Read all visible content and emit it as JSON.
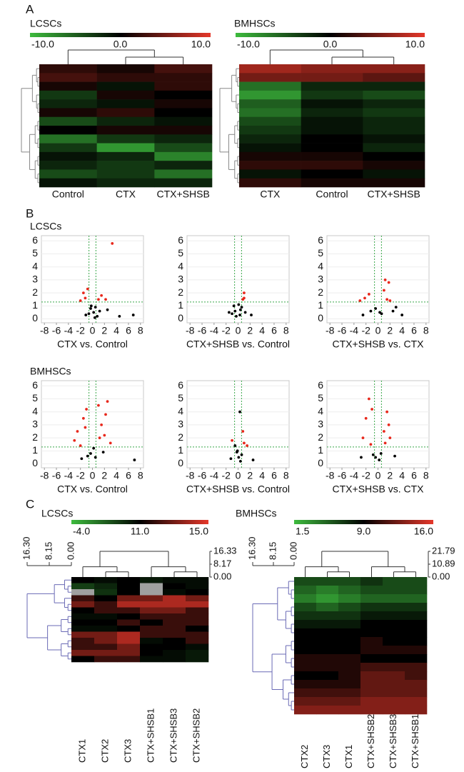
{
  "panel_labels": [
    "A",
    "B",
    "C"
  ],
  "heatmap_colors": [
    "#3dbb3d",
    "#000000",
    "#e5372a"
  ],
  "heatmaps_a": [
    {
      "title": "LCSCs",
      "scale_ticks": [
        {
          "value": -10,
          "label": "-10.0"
        },
        {
          "value": 0,
          "label": "0.0"
        },
        {
          "value": 10,
          "label": "10.0"
        }
      ],
      "columns": [
        "Control",
        "CTX",
        "CTX+SHSB"
      ],
      "rows": [
        [
          2,
          1,
          3
        ],
        [
          3,
          2,
          2
        ],
        [
          1,
          -1,
          2
        ],
        [
          -3,
          1,
          0
        ],
        [
          -2,
          -1,
          1
        ],
        [
          1,
          2,
          0
        ],
        [
          -4,
          -2,
          -1
        ],
        [
          0,
          1,
          1
        ],
        [
          -6,
          -3,
          -2
        ],
        [
          -3,
          -8,
          -4
        ],
        [
          -1,
          -2,
          -7
        ],
        [
          -2,
          -3,
          -2
        ],
        [
          -4,
          -3,
          -6
        ],
        [
          -1,
          -2,
          -2
        ]
      ]
    },
    {
      "title": "BMHSCs",
      "scale_ticks": [
        {
          "value": -10,
          "label": "-10.0"
        },
        {
          "value": 0,
          "label": "0.0"
        },
        {
          "value": 10,
          "label": "10.0"
        }
      ],
      "columns": [
        "CTX",
        "Control",
        "CTX+SHSB"
      ],
      "rows": [
        [
          7,
          6,
          6
        ],
        [
          5,
          5,
          4
        ],
        [
          -6,
          -2,
          -2
        ],
        [
          -8,
          -3,
          -4
        ],
        [
          -5,
          -1,
          -2
        ],
        [
          -6,
          -2,
          -3
        ],
        [
          -4,
          -1,
          -2
        ],
        [
          -3,
          -1,
          -2
        ],
        [
          -2,
          0,
          -1
        ],
        [
          -1,
          0,
          -2
        ],
        [
          1,
          1,
          0
        ],
        [
          2,
          2,
          1
        ],
        [
          -1,
          0,
          -1
        ],
        [
          2,
          1,
          1
        ]
      ]
    }
  ],
  "volcano": {
    "type": "scatter",
    "xlim": [
      -8.5,
      8.5
    ],
    "ylim": [
      -0.3,
      6.4
    ],
    "xticks": [
      -8,
      -6,
      -4,
      -2,
      0,
      2,
      4,
      6,
      8
    ],
    "yticks": [
      0,
      1,
      2,
      3,
      4,
      5,
      6
    ],
    "grid": true,
    "thresholds": {
      "x": [
        -0.58,
        0.58
      ],
      "y": 1.3
    },
    "threshold_color": "#3aa84a",
    "point_colors": {
      "significant": "#e8281c",
      "other": "#000000"
    },
    "groups": [
      {
        "title": "LCSCs",
        "plots": [
          {
            "xlabel": "CTX vs. Control",
            "x": [
              -1.5,
              -1.2,
              -0.8,
              1.0,
              1.5,
              2.2,
              -2.0,
              3.3,
              -0.3,
              0.2,
              0.5,
              -0.6,
              1.2,
              -1.1,
              0.8,
              2.5,
              4.5,
              -0.2,
              0.4,
              6.8
            ],
            "y": [
              2.0,
              1.6,
              2.3,
              1.5,
              1.8,
              1.5,
              1.4,
              5.8,
              0.8,
              0.5,
              0.9,
              0.4,
              0.6,
              0.3,
              0.2,
              0.7,
              0.2,
              1.0,
              0.1,
              0.3
            ]
          },
          {
            "xlabel": "CTX+SHSB vs. Control",
            "x": [
              -0.5,
              0.3,
              0.6,
              -1.0,
              1.0,
              -0.3,
              0.1,
              0.8,
              1.2,
              2.2,
              -1.5,
              0.4,
              -0.7,
              1.0
            ],
            "y": [
              0.6,
              0.3,
              0.9,
              0.4,
              2.0,
              0.2,
              1.1,
              1.5,
              0.5,
              0.3,
              0.5,
              0.7,
              1.0,
              1.6
            ]
          },
          {
            "xlabel": "CTX+SHSB vs. CTX",
            "x": [
              -3.0,
              -2.2,
              -1.5,
              1.0,
              1.5,
              2.0,
              1.2,
              -0.4,
              0.3,
              2.5,
              -2.5,
              3.0,
              0.6,
              -1.2,
              1.8,
              4.0
            ],
            "y": [
              1.4,
              1.6,
              1.9,
              2.2,
              1.5,
              1.4,
              3.0,
              0.8,
              0.5,
              0.6,
              0.3,
              0.9,
              0.4,
              0.6,
              2.8,
              0.3
            ]
          }
        ]
      },
      {
        "title": "BMHSCs",
        "plots": [
          {
            "xlabel": "CTX vs. Control",
            "x": [
              -3.0,
              -2.5,
              -1.5,
              -1.0,
              1.0,
              1.5,
              2.0,
              2.5,
              3.0,
              -2.0,
              1.2,
              -0.3,
              0.2,
              0.5,
              -0.8,
              1.8,
              -1.8,
              7.0,
              2.2,
              -1.2
            ],
            "y": [
              1.8,
              2.5,
              3.5,
              4.2,
              4.5,
              3.0,
              2.2,
              4.8,
              1.6,
              1.4,
              2.0,
              0.8,
              1.2,
              0.5,
              0.6,
              0.9,
              0.4,
              0.3,
              3.8,
              2.8
            ]
          },
          {
            "xlabel": "CTX+SHSB vs. Control",
            "x": [
              -1.0,
              -0.5,
              0.3,
              0.8,
              1.0,
              1.5,
              -0.2,
              0.1,
              0.6,
              -1.2,
              2.5,
              -0.1,
              0.4
            ],
            "y": [
              1.8,
              1.4,
              4.0,
              2.5,
              1.6,
              1.4,
              0.9,
              0.5,
              0.7,
              0.4,
              0.3,
              1.0,
              0.2
            ]
          },
          {
            "xlabel": "CTX+SHSB vs. CTX",
            "x": [
              -2.5,
              -2.0,
              -1.5,
              -1.0,
              1.0,
              1.5,
              2.0,
              1.2,
              -1.2,
              0.5,
              -0.4,
              0.2,
              2.8,
              -2.8,
              1.8,
              -0.8
            ],
            "y": [
              2.0,
              3.5,
              5.0,
              4.2,
              2.5,
              4.0,
              2.0,
              1.6,
              1.5,
              0.8,
              0.5,
              0.3,
              0.6,
              0.5,
              3.0,
              0.7
            ]
          }
        ]
      }
    ]
  },
  "heatmaps_c": [
    {
      "title": "LCSCs",
      "scale_ticks": [
        {
          "value": -4,
          "label": "-4.0"
        },
        {
          "value": 11,
          "label": "11.0"
        },
        {
          "value": 15,
          "label": "15.0"
        }
      ],
      "row_tree_lim": [
        0,
        16.3
      ],
      "row_tree_ticks": [
        {
          "value": 16.3,
          "label": "16.30"
        },
        {
          "value": 8.15,
          "label": "8.15"
        },
        {
          "value": 0,
          "label": "0.00"
        }
      ],
      "col_tree_lim": [
        0,
        16.33
      ],
      "col_tree_ticks": [
        {
          "value": 16.33,
          "label": "16.33"
        },
        {
          "value": 8.17,
          "label": "8.17"
        },
        {
          "value": 0,
          "label": "0.00"
        }
      ],
      "columns": [
        "CTX1",
        "CTX2",
        "CTX3",
        "CTX+SHSB1",
        "CTX+SHSB3",
        "CTX+SHSB2"
      ],
      "rows": [
        [
          11,
          10,
          11,
          9,
          10,
          10
        ],
        [
          6,
          8,
          11,
          null,
          11,
          10
        ],
        [
          null,
          7,
          11,
          null,
          10,
          11
        ],
        [
          12,
          11,
          13,
          13,
          14,
          13
        ],
        [
          13,
          12,
          14,
          14,
          14,
          14
        ],
        [
          11,
          12,
          12,
          13,
          13,
          12
        ],
        [
          10,
          10,
          11,
          12,
          12,
          12
        ],
        [
          11,
          11,
          12,
          11,
          12,
          12
        ],
        [
          10,
          10,
          11,
          12,
          12,
          11
        ],
        [
          13,
          13,
          14,
          12,
          12,
          12
        ],
        [
          12,
          13,
          14,
          10,
          11,
          12
        ],
        [
          12,
          12,
          13,
          11,
          11,
          10
        ],
        [
          13,
          13,
          13,
          11,
          10,
          9
        ],
        [
          11,
          12,
          12,
          10,
          10,
          9
        ]
      ]
    },
    {
      "title": "BMHSCs",
      "scale_ticks": [
        {
          "value": 1.5,
          "label": "1.5"
        },
        {
          "value": 9,
          "label": "9.0"
        },
        {
          "value": 16,
          "label": "16.0"
        }
      ],
      "row_tree_lim": [
        0,
        16.3
      ],
      "row_tree_ticks": [
        {
          "value": 16.3,
          "label": "16.30"
        },
        {
          "value": 8.15,
          "label": "8.15"
        },
        {
          "value": 0,
          "label": "0.00"
        }
      ],
      "col_tree_lim": [
        0,
        21.79
      ],
      "col_tree_ticks": [
        {
          "value": 21.79,
          "label": "21.79"
        },
        {
          "value": 10.89,
          "label": "10.89"
        },
        {
          "value": 0,
          "label": "0.00"
        }
      ],
      "columns": [
        "CTX2",
        "CTX3",
        "CTX1",
        "CTX+SHSB2",
        "CTX+SHSB3",
        "CTX+SHSB1"
      ],
      "rows": [
        [
          6,
          6,
          6,
          7,
          6,
          6
        ],
        [
          5,
          4,
          5,
          6,
          6,
          6
        ],
        [
          4,
          3,
          4,
          5,
          5,
          5
        ],
        [
          6,
          5,
          6,
          7,
          7,
          7
        ],
        [
          7,
          7,
          7,
          8,
          8,
          8
        ],
        [
          8,
          8,
          8,
          9,
          9,
          9
        ],
        [
          9,
          9,
          9,
          9,
          9,
          9
        ],
        [
          9,
          9,
          9,
          10,
          9,
          9
        ],
        [
          9,
          9,
          9,
          10,
          10,
          10
        ],
        [
          10,
          10,
          10,
          9,
          9,
          9
        ],
        [
          10,
          10,
          10,
          11,
          11,
          11
        ],
        [
          9,
          9,
          10,
          12,
          12,
          11
        ],
        [
          10,
          10,
          10,
          12,
          12,
          12
        ],
        [
          11,
          11,
          11,
          12,
          12,
          12
        ],
        [
          12,
          12,
          12,
          13,
          13,
          13
        ],
        [
          13,
          13,
          13,
          13,
          13,
          13
        ]
      ]
    }
  ]
}
